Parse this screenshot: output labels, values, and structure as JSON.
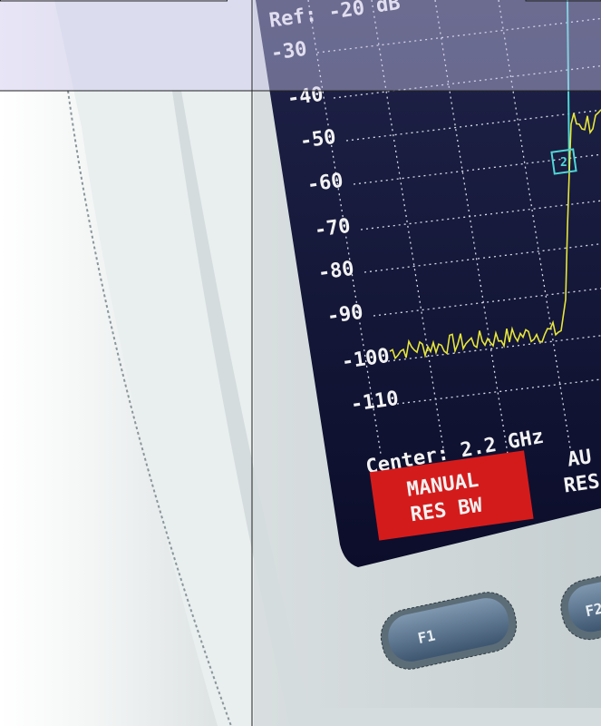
{
  "screen": {
    "ref_label": "Ref: -20 dB",
    "y_labels": [
      "-30",
      "-40",
      "-50",
      "-60",
      "-70",
      "-80",
      "-90",
      "-100",
      "-110"
    ],
    "center": "Center: 2.2 GHz",
    "marker": "2"
  },
  "soft_keys": [
    {
      "lines": [
        "MANUAL",
        "RES BW"
      ]
    },
    {
      "lines": [
        "AU",
        "RES"
      ]
    }
  ],
  "buttons": [
    "F1",
    "F2"
  ]
}
